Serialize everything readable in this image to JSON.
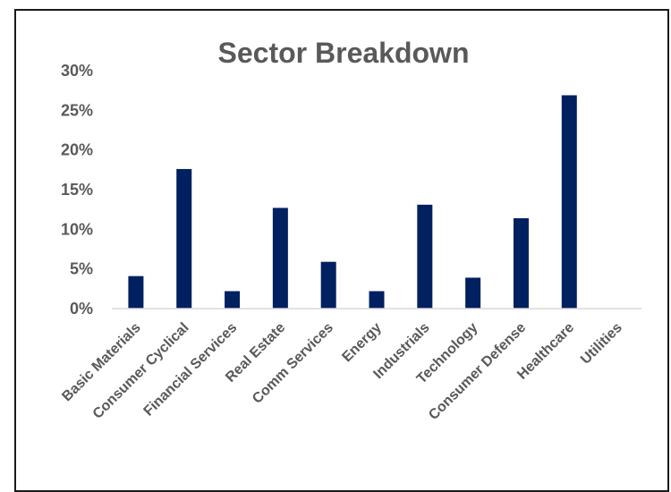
{
  "chart_data": {
    "type": "bar",
    "title": "Sector Breakdown",
    "xlabel": "",
    "ylabel": "",
    "categories": [
      "Basic Materials",
      "Consumer Cyclical",
      "Financial Services",
      "Real Estate",
      "Comm Services",
      "Energy",
      "Industrials",
      "Technology",
      "Consumer Defense",
      "Healthcare",
      "Utilities"
    ],
    "values": [
      4.1,
      17.6,
      2.2,
      12.7,
      5.9,
      2.2,
      13.1,
      3.9,
      11.4,
      26.9,
      0
    ],
    "ylim": [
      0,
      30
    ],
    "yticks": [
      0,
      5,
      10,
      15,
      20,
      25,
      30
    ],
    "ytick_labels": [
      "0%",
      "5%",
      "10%",
      "15%",
      "20%",
      "25%",
      "30%"
    ],
    "grid": false,
    "legend": "none",
    "bar_color": "#002060"
  }
}
